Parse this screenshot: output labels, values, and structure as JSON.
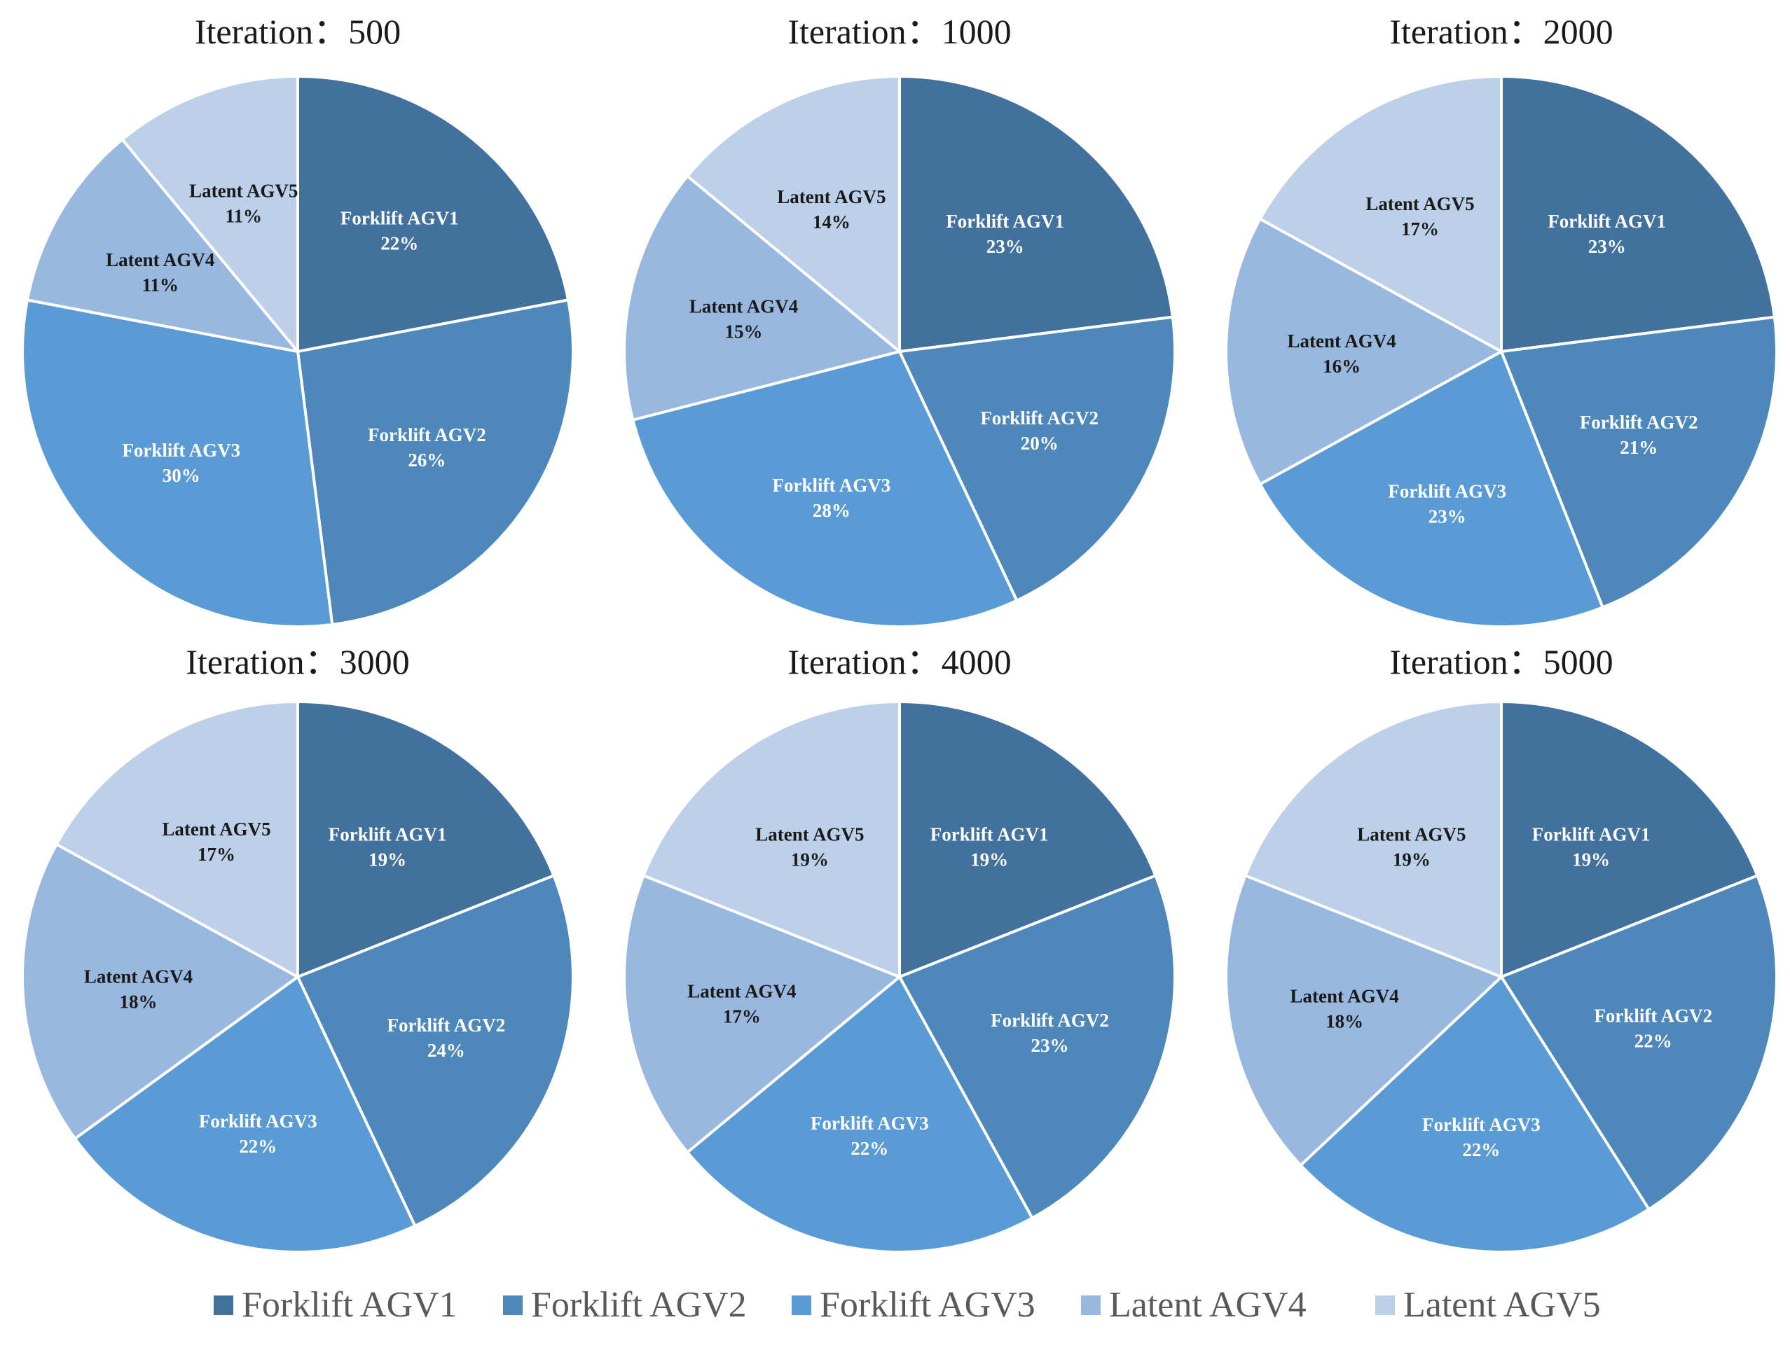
{
  "colors": {
    "Forklift AGV1": "#41719c",
    "Forklift AGV2": "#4e88bb",
    "Forklift AGV3": "#5b9bd5",
    "Latent AGV4": "#98b8e0",
    "Latent AGV5": "#bdd0ea"
  },
  "label_text_colors": {
    "Forklift AGV1": "#ffffff",
    "Forklift AGV2": "#ffffff",
    "Forklift AGV3": "#ffffff",
    "Latent AGV4": "#1a1a1a",
    "Latent AGV5": "#1a1a1a"
  },
  "legend": {
    "items": [
      "Forklift AGV1",
      "Forklift AGV2",
      "Forklift AGV3",
      "Latent AGV4",
      "Latent AGV5"
    ]
  },
  "chart_data": [
    {
      "type": "pie",
      "title": "Iteration：500",
      "labels": [
        "Forklift AGV1",
        "Forklift AGV2",
        "Forklift AGV3",
        "Latent AGV4",
        "Latent AGV5"
      ],
      "values": [
        22,
        26,
        30,
        11,
        11
      ],
      "value_labels": [
        "22%",
        "26%",
        "30%",
        "11%",
        "11%"
      ]
    },
    {
      "type": "pie",
      "title": "Iteration：1000",
      "labels": [
        "Forklift AGV1",
        "Forklift AGV2",
        "Forklift AGV3",
        "Latent AGV4",
        "Latent AGV5"
      ],
      "values": [
        23,
        20,
        28,
        15,
        14
      ],
      "value_labels": [
        "23%",
        "20%",
        "28%",
        "15%",
        "14%"
      ]
    },
    {
      "type": "pie",
      "title": "Iteration：2000",
      "labels": [
        "Forklift AGV1",
        "Forklift AGV2",
        "Forklift AGV3",
        "Latent AGV4",
        "Latent AGV5"
      ],
      "values": [
        23,
        21,
        23,
        16,
        17
      ],
      "value_labels": [
        "23%",
        "21%",
        "23%",
        "16%",
        "17%"
      ]
    },
    {
      "type": "pie",
      "title": "Iteration：3000",
      "labels": [
        "Forklift AGV1",
        "Forklift AGV2",
        "Forklift AGV3",
        "Latent AGV4",
        "Latent AGV5"
      ],
      "values": [
        19,
        24,
        22,
        18,
        17
      ],
      "value_labels": [
        "19%",
        "24%",
        "22%",
        "18%",
        "17%"
      ]
    },
    {
      "type": "pie",
      "title": "Iteration：4000",
      "labels": [
        "Forklift AGV1",
        "Forklift AGV2",
        "Forklift AGV3",
        "Latent AGV4",
        "Latent AGV5"
      ],
      "values": [
        19,
        23,
        22,
        17,
        19
      ],
      "value_labels": [
        "19%",
        "23%",
        "22%",
        "17%",
        "19%"
      ]
    },
    {
      "type": "pie",
      "title": "Iteration：5000",
      "labels": [
        "Forklift AGV1",
        "Forklift AGV2",
        "Forklift AGV3",
        "Latent AGV4",
        "Latent AGV5"
      ],
      "values": [
        19,
        22,
        22,
        18,
        19
      ],
      "value_labels": [
        "19%",
        "22%",
        "22%",
        "18%",
        "19%"
      ]
    }
  ]
}
